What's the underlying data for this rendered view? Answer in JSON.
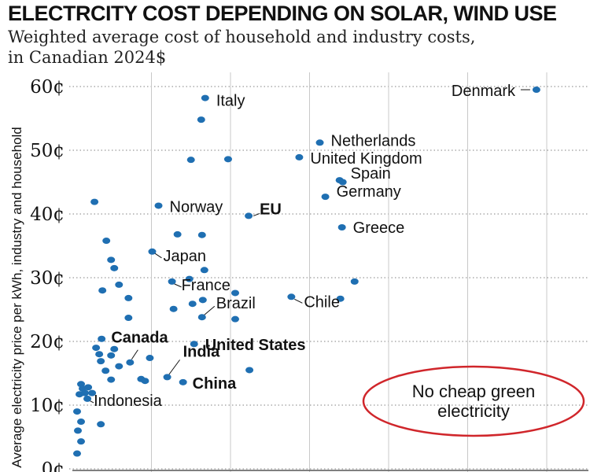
{
  "chart_data": {
    "type": "scatter",
    "title": "ELECTRCITY COST DEPENDING ON SOLAR, WIND USE",
    "subtitle_lines": [
      "Weighted average cost of household and industry costs,",
      "in Canadian 2024$"
    ],
    "ylabel": "Average electricity price per kWh, industry and household",
    "xlabel": "",
    "yticks": [
      "0¢",
      "10¢",
      "20¢",
      "30¢",
      "40¢",
      "50¢",
      "60¢"
    ],
    "ylim": [
      0,
      60
    ],
    "xlim": [
      0,
      60
    ],
    "grid": true,
    "point_color": "#1f6fb2",
    "annotation": "No cheap green electricity",
    "annotation_lines": [
      "No cheap green",
      "electricity"
    ],
    "annotation_color": "#d0262b",
    "points": [
      {
        "label": "Denmark",
        "x": 58.2,
        "y": 59.5,
        "bold": false
      },
      {
        "label": "Italy",
        "x": 16.3,
        "y": 58.2,
        "bold": false
      },
      {
        "label": "",
        "x": 15.8,
        "y": 54.8
      },
      {
        "label": "Netherlands",
        "x": 30.8,
        "y": 51.2,
        "bold": false
      },
      {
        "label": "United Kingdom",
        "x": 28.2,
        "y": 48.9,
        "bold": false
      },
      {
        "label": "",
        "x": 14.5,
        "y": 48.5
      },
      {
        "label": "",
        "x": 19.2,
        "y": 48.6
      },
      {
        "label": "Spain",
        "x": 33.3,
        "y": 45.3,
        "bold": false
      },
      {
        "label": "",
        "x": 33.7,
        "y": 45.0
      },
      {
        "label": "Germany",
        "x": 31.5,
        "y": 42.7,
        "bold": false
      },
      {
        "label": "",
        "x": 2.3,
        "y": 41.9
      },
      {
        "label": "Norway",
        "x": 10.4,
        "y": 41.3,
        "bold": false
      },
      {
        "label": "EU",
        "x": 21.8,
        "y": 39.7,
        "bold": true
      },
      {
        "label": "Greece",
        "x": 33.6,
        "y": 37.9,
        "bold": false
      },
      {
        "label": "",
        "x": 12.8,
        "y": 36.8
      },
      {
        "label": "",
        "x": 15.9,
        "y": 36.7
      },
      {
        "label": "",
        "x": 3.8,
        "y": 35.8
      },
      {
        "label": "Japan",
        "x": 9.6,
        "y": 34.1,
        "bold": false
      },
      {
        "label": "",
        "x": 4.4,
        "y": 32.8
      },
      {
        "label": "",
        "x": 4.8,
        "y": 31.5
      },
      {
        "label": "",
        "x": 16.2,
        "y": 31.2
      },
      {
        "label": "",
        "x": 14.3,
        "y": 29.8
      },
      {
        "label": "France",
        "x": 12.1,
        "y": 29.4,
        "bold": false
      },
      {
        "label": "",
        "x": 35.2,
        "y": 29.4
      },
      {
        "label": "",
        "x": 5.4,
        "y": 28.9
      },
      {
        "label": "",
        "x": 3.3,
        "y": 28.0
      },
      {
        "label": "",
        "x": 20.1,
        "y": 27.6
      },
      {
        "label": "Chile",
        "x": 27.2,
        "y": 27.0,
        "bold": false
      },
      {
        "label": "",
        "x": 33.4,
        "y": 26.7
      },
      {
        "label": "",
        "x": 6.6,
        "y": 26.8
      },
      {
        "label": "",
        "x": 16.0,
        "y": 26.5
      },
      {
        "label": "",
        "x": 14.7,
        "y": 25.9
      },
      {
        "label": "",
        "x": 12.3,
        "y": 25.1
      },
      {
        "label": "Brazil",
        "x": 15.9,
        "y": 23.8,
        "bold": false
      },
      {
        "label": "",
        "x": 6.6,
        "y": 23.7
      },
      {
        "label": "",
        "x": 20.1,
        "y": 23.5
      },
      {
        "label": "",
        "x": 3.2,
        "y": 20.4
      },
      {
        "label": "United States",
        "x": 14.9,
        "y": 19.6,
        "bold": true
      },
      {
        "label": "",
        "x": 2.5,
        "y": 19.0
      },
      {
        "label": "",
        "x": 4.8,
        "y": 18.8
      },
      {
        "label": "",
        "x": 2.9,
        "y": 18.0
      },
      {
        "label": "",
        "x": 4.4,
        "y": 17.8
      },
      {
        "label": "",
        "x": 9.3,
        "y": 17.4
      },
      {
        "label": "",
        "x": 3.1,
        "y": 16.9
      },
      {
        "label": "Canada",
        "x": 6.8,
        "y": 16.7,
        "bold": true
      },
      {
        "label": "",
        "x": 5.4,
        "y": 16.1
      },
      {
        "label": "",
        "x": 3.7,
        "y": 15.4
      },
      {
        "label": "",
        "x": 21.9,
        "y": 15.5
      },
      {
        "label": "India",
        "x": 11.5,
        "y": 14.4,
        "bold": true
      },
      {
        "label": "",
        "x": 4.4,
        "y": 14.0
      },
      {
        "label": "",
        "x": 8.2,
        "y": 14.1
      },
      {
        "label": "",
        "x": 8.7,
        "y": 13.8
      },
      {
        "label": "China",
        "x": 13.5,
        "y": 13.6,
        "bold": true
      },
      {
        "label": "",
        "x": 0.6,
        "y": 13.3
      },
      {
        "label": "",
        "x": 0.8,
        "y": 12.6
      },
      {
        "label": "",
        "x": 1.5,
        "y": 12.8
      },
      {
        "label": "",
        "x": 0.4,
        "y": 11.7
      },
      {
        "label": "",
        "x": 1.1,
        "y": 11.9
      },
      {
        "label": "",
        "x": 2.0,
        "y": 11.9
      },
      {
        "label": "Indonesia",
        "x": 1.4,
        "y": 11.0,
        "bold": false
      },
      {
        "label": "",
        "x": 0.1,
        "y": 9.0
      },
      {
        "label": "",
        "x": 0.6,
        "y": 7.4
      },
      {
        "label": "",
        "x": 3.1,
        "y": 7.0
      },
      {
        "label": "",
        "x": 0.2,
        "y": 6.0
      },
      {
        "label": "",
        "x": 0.6,
        "y": 4.3
      },
      {
        "label": "",
        "x": 0.1,
        "y": 2.4
      }
    ]
  }
}
